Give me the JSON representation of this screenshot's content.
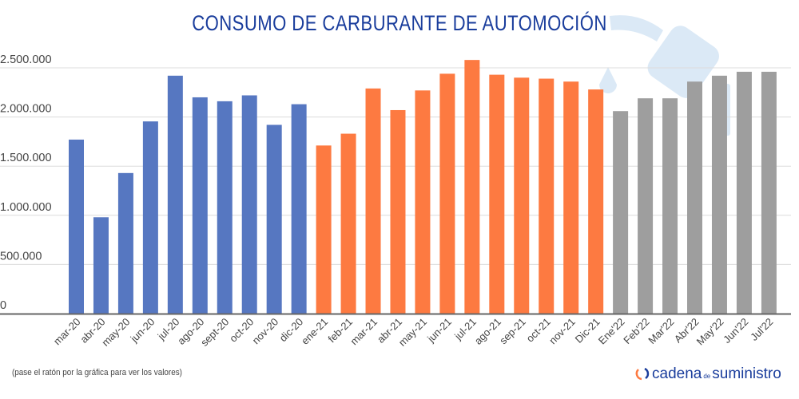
{
  "chart_data": {
    "type": "bar",
    "title": "CONSUMO DE CARBURANTE DE AUTOMOCIÓN",
    "xlabel": "",
    "ylabel": "",
    "ylim": [
      0,
      2500000
    ],
    "grid": true,
    "yticks": [
      "0",
      "500.000",
      "1.000.000",
      "1.500.000",
      "2.000.000",
      "2.500.000"
    ],
    "ytick_values": [
      0,
      500000,
      1000000,
      1500000,
      2000000,
      2500000
    ],
    "categories": [
      "mar-20",
      "abr-20",
      "may-20",
      "jun-20",
      "jul-20",
      "ago-20",
      "sept-20",
      "oct-20",
      "nov-20",
      "dic-20",
      "ene-21",
      "feb-21",
      "mar-21",
      "abr-21",
      "may-21",
      "jun-21",
      "jul-21",
      "ago-21",
      "sep-21",
      "oct-21",
      "nov-21",
      "Dic-21",
      "Ene'22",
      "Feb'22",
      "Mar'22",
      "Abr'22",
      "May'22",
      "Jun'22",
      "Jul'22"
    ],
    "values": [
      1770000,
      980000,
      1430000,
      1955000,
      2420000,
      2200000,
      2160000,
      2220000,
      1920000,
      2130000,
      1710000,
      1830000,
      2290000,
      2070000,
      2270000,
      2440000,
      2580000,
      2430000,
      2400000,
      2390000,
      2360000,
      2280000,
      2060000,
      2190000,
      2190000,
      2360000,
      2420000,
      2460000,
      2460000
    ],
    "bar_colors": [
      "#5677c1",
      "#5677c1",
      "#5677c1",
      "#5677c1",
      "#5677c1",
      "#5677c1",
      "#5677c1",
      "#5677c1",
      "#5677c1",
      "#5677c1",
      "#fd7a41",
      "#fd7a41",
      "#fd7a41",
      "#fd7a41",
      "#fd7a41",
      "#fd7a41",
      "#fd7a41",
      "#fd7a41",
      "#fd7a41",
      "#fd7a41",
      "#fd7a41",
      "#fd7a41",
      "#9e9e9e",
      "#9e9e9e",
      "#9e9e9e",
      "#9e9e9e",
      "#9e9e9e",
      "#9e9e9e",
      "#9e9e9e"
    ]
  },
  "note": "(pase el ratón por la gráfica para ver los valores)",
  "logo": {
    "part1": "cadena",
    "part2": "de",
    "part3": "suministro"
  },
  "watermark_icon": "fuel-pump-nozzle-icon"
}
